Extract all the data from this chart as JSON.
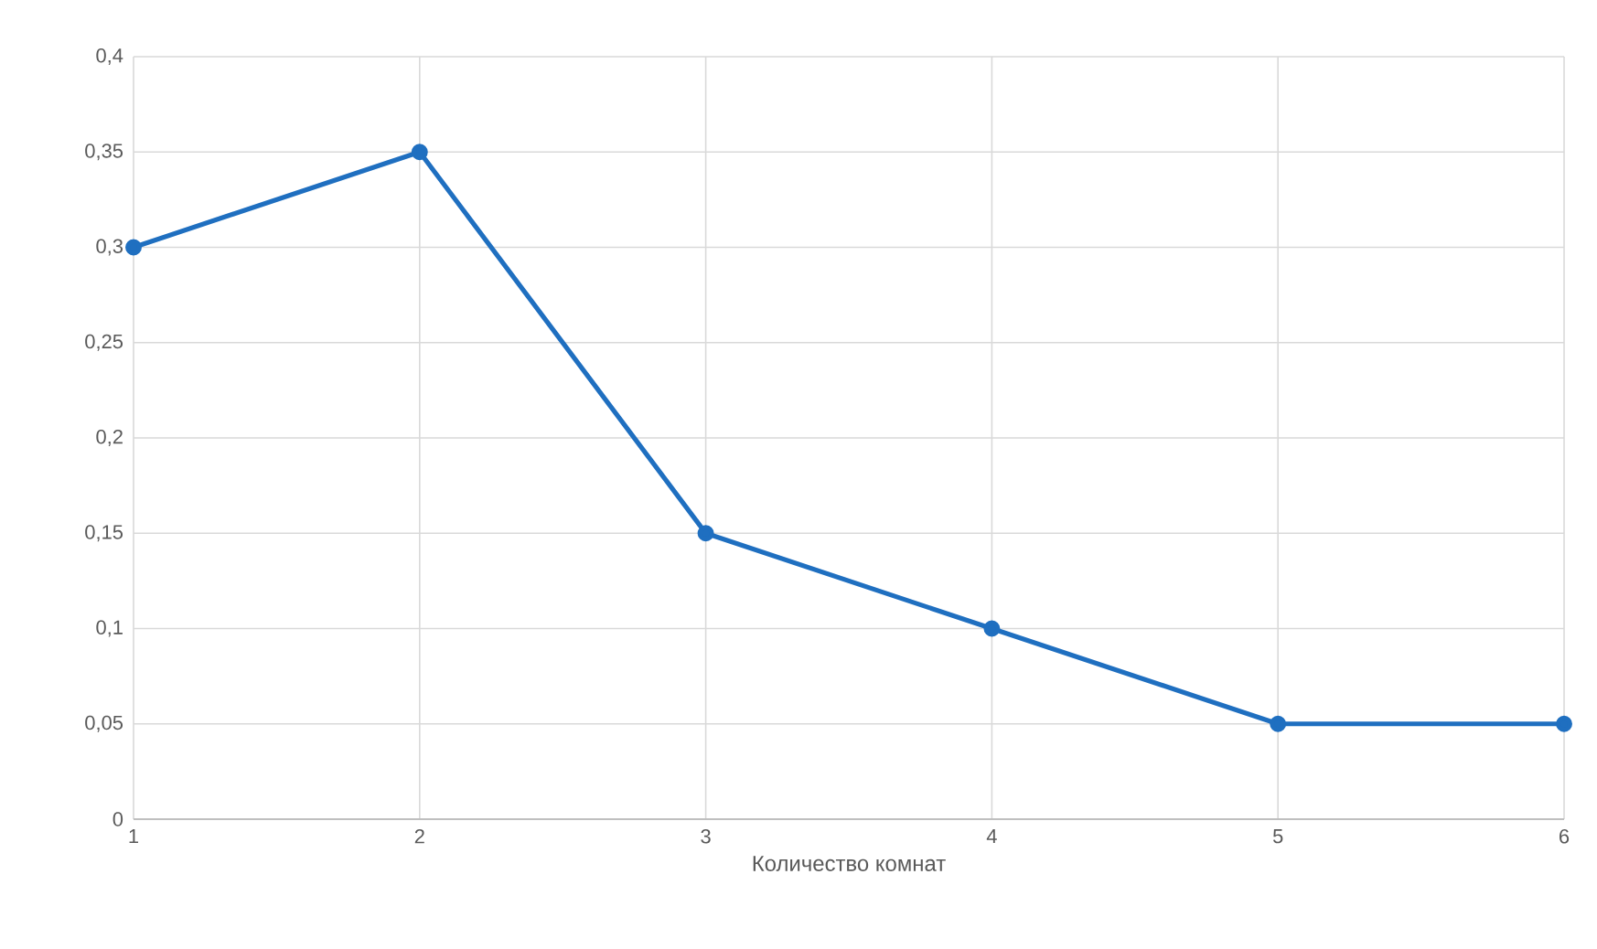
{
  "chart_data": {
    "type": "line",
    "xlabel": "Количество комнат",
    "x": [
      1,
      2,
      3,
      4,
      5,
      6
    ],
    "series": [
      {
        "color": "#1f6fc0",
        "values": [
          0.3,
          0.35,
          0.15,
          0.1,
          0.05,
          0.05
        ]
      }
    ],
    "xlim": [
      1,
      6
    ],
    "xticks": [
      1,
      2,
      3,
      4,
      5,
      6
    ],
    "ylim": [
      0,
      0.4
    ],
    "yticks": [
      0,
      {
        "value": 0.05,
        "label": "0,05"
      },
      {
        "value": 0.1,
        "label": "0,1"
      },
      {
        "value": 0.15,
        "label": "0,15"
      },
      {
        "value": 0.2,
        "label": "0,2"
      },
      {
        "value": 0.25,
        "label": "0,25"
      },
      {
        "value": 0.3,
        "label": "0,3"
      },
      {
        "value": 0.35,
        "label": "0,35"
      },
      {
        "value": 0.4,
        "label": "0,4"
      }
    ],
    "grid": true,
    "marker": "circle",
    "line_style": "solid"
  }
}
